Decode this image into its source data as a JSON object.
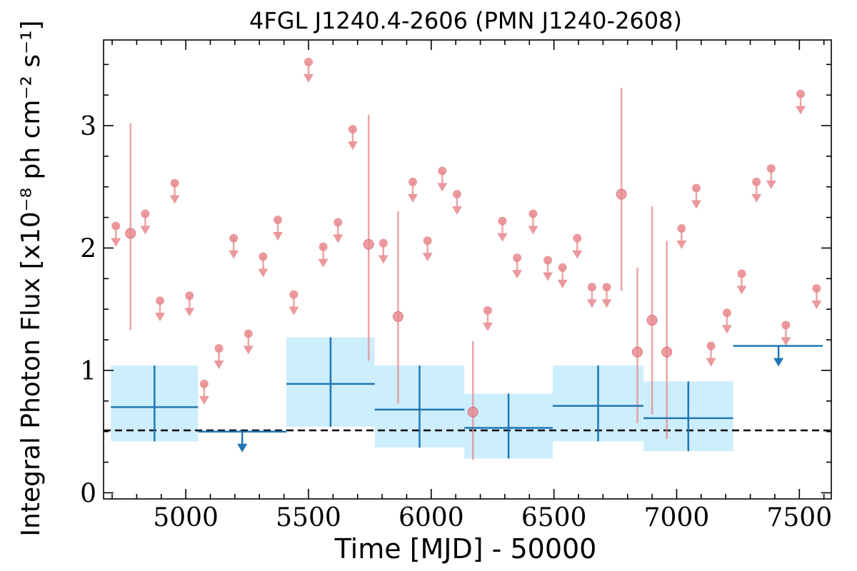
{
  "chart_data": {
    "type": "scatter",
    "title": "4FGL J1240.4-2606 (PMN J1240-2608)",
    "xlabel": "Time [MJD] - 50000",
    "ylabel": "Integral Photon Flux [x10⁻⁸ ph cm⁻² s⁻¹]",
    "xlim": [
      4665,
      7630
    ],
    "ylim": [
      -0.05,
      3.7
    ],
    "x_ticks": [
      5000,
      5500,
      6000,
      6500,
      7000,
      7500
    ],
    "x_tick_labels": [
      "5000",
      "5500",
      "6000",
      "6500",
      "7000",
      "7500"
    ],
    "y_ticks": [
      0,
      1,
      2,
      3
    ],
    "y_tick_labels": [
      "0",
      "1",
      "2",
      "3"
    ],
    "grid": false,
    "colors": {
      "fine_bins": "#e8878c",
      "coarse_bins": "#1f77b4",
      "coarse_band": "#cdeefc",
      "mean_line": "#000000"
    },
    "series": [
      {
        "key": "fine_bins",
        "points": [
          {
            "x": 4715,
            "y": 2.18,
            "ul": true
          },
          {
            "x": 4775,
            "y": 2.12,
            "lo": 1.33,
            "hi": 3.02
          },
          {
            "x": 4835,
            "y": 2.28,
            "ul": true
          },
          {
            "x": 4895,
            "y": 1.57,
            "ul": true
          },
          {
            "x": 4955,
            "y": 2.53,
            "ul": true
          },
          {
            "x": 5015,
            "y": 1.61,
            "ul": true
          },
          {
            "x": 5075,
            "y": 0.89,
            "ul": true
          },
          {
            "x": 5135,
            "y": 1.18,
            "ul": true
          },
          {
            "x": 5195,
            "y": 2.08,
            "ul": true
          },
          {
            "x": 5255,
            "y": 1.3,
            "ul": true
          },
          {
            "x": 5315,
            "y": 1.93,
            "ul": true
          },
          {
            "x": 5375,
            "y": 2.23,
            "ul": true
          },
          {
            "x": 5440,
            "y": 1.62,
            "ul": true
          },
          {
            "x": 5500,
            "y": 3.52,
            "ul": true
          },
          {
            "x": 5560,
            "y": 2.01,
            "ul": true
          },
          {
            "x": 5620,
            "y": 2.21,
            "ul": true
          },
          {
            "x": 5680,
            "y": 2.97,
            "ul": true
          },
          {
            "x": 5745,
            "y": 2.03,
            "lo": 1.08,
            "hi": 3.09
          },
          {
            "x": 5805,
            "y": 2.04,
            "ul": true
          },
          {
            "x": 5865,
            "y": 1.44,
            "lo": 0.73,
            "hi": 2.3
          },
          {
            "x": 5925,
            "y": 2.54,
            "ul": true
          },
          {
            "x": 5985,
            "y": 2.06,
            "ul": true
          },
          {
            "x": 6045,
            "y": 2.63,
            "ul": true
          },
          {
            "x": 6105,
            "y": 2.44,
            "ul": true
          },
          {
            "x": 6170,
            "y": 0.66,
            "lo": 0.27,
            "hi": 1.24
          },
          {
            "x": 6230,
            "y": 1.49,
            "ul": true
          },
          {
            "x": 6290,
            "y": 2.22,
            "ul": true
          },
          {
            "x": 6350,
            "y": 1.92,
            "ul": true
          },
          {
            "x": 6415,
            "y": 2.28,
            "ul": true
          },
          {
            "x": 6475,
            "y": 1.9,
            "ul": true
          },
          {
            "x": 6535,
            "y": 1.84,
            "ul": true
          },
          {
            "x": 6595,
            "y": 2.08,
            "ul": true
          },
          {
            "x": 6655,
            "y": 1.68,
            "ul": true
          },
          {
            "x": 6715,
            "y": 1.68,
            "ul": true
          },
          {
            "x": 6775,
            "y": 2.44,
            "lo": 1.65,
            "hi": 3.31
          },
          {
            "x": 6840,
            "y": 1.15,
            "lo": 0.57,
            "hi": 1.84
          },
          {
            "x": 6900,
            "y": 1.41,
            "lo": 0.64,
            "hi": 2.34
          },
          {
            "x": 6960,
            "y": 1.15,
            "lo": 0.44,
            "hi": 2.06
          },
          {
            "x": 7020,
            "y": 2.16,
            "ul": true
          },
          {
            "x": 7080,
            "y": 2.49,
            "ul": true
          },
          {
            "x": 7140,
            "y": 1.2,
            "ul": true
          },
          {
            "x": 7205,
            "y": 1.47,
            "ul": true
          },
          {
            "x": 7265,
            "y": 1.79,
            "ul": true
          },
          {
            "x": 7325,
            "y": 2.54,
            "ul": true
          },
          {
            "x": 7385,
            "y": 2.65,
            "ul": true
          },
          {
            "x": 7445,
            "y": 1.37,
            "ul": true
          },
          {
            "x": 7505,
            "y": 3.26,
            "ul": true
          },
          {
            "x": 7570,
            "y": 1.67,
            "ul": true
          }
        ]
      },
      {
        "key": "coarse_bins",
        "bins": [
          {
            "x0": 4695,
            "x1": 5050,
            "y": 0.7,
            "lo": 0.42,
            "hi": 1.04
          },
          {
            "x0": 5050,
            "x1": 5410,
            "y": 0.5,
            "ul": true,
            "arrow_x": 5230
          },
          {
            "x0": 5410,
            "x1": 5770,
            "y": 0.89,
            "lo": 0.54,
            "hi": 1.27
          },
          {
            "x0": 5770,
            "x1": 6135,
            "y": 0.68,
            "lo": 0.37,
            "hi": 1.04
          },
          {
            "x0": 6135,
            "x1": 6495,
            "y": 0.53,
            "lo": 0.28,
            "hi": 0.81
          },
          {
            "x0": 6495,
            "x1": 6865,
            "y": 0.71,
            "lo": 0.42,
            "hi": 1.04
          },
          {
            "x0": 6865,
            "x1": 7230,
            "y": 0.61,
            "lo": 0.34,
            "hi": 0.91
          },
          {
            "x0": 7230,
            "x1": 7595,
            "y": 1.2,
            "ul": true,
            "arrow_x": 7415
          }
        ]
      }
    ],
    "mean_flux": 0.51
  }
}
